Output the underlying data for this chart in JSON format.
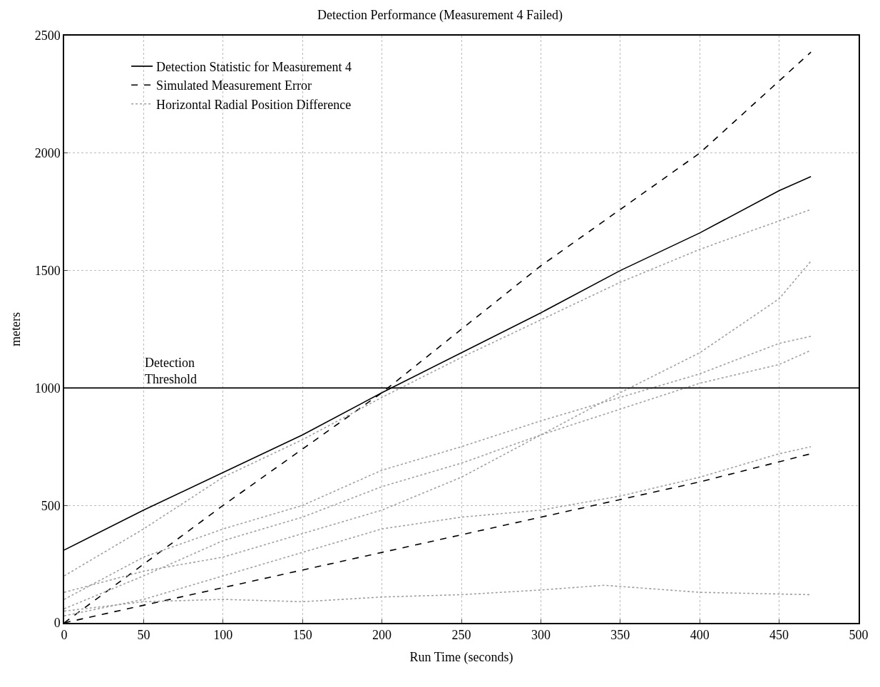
{
  "chart_data": {
    "type": "line",
    "title": "Detection Performance (Measurement 4 Failed)",
    "xlabel": "Run Time (seconds)",
    "ylabel": "meters",
    "xlim": [
      0,
      500
    ],
    "xticks": [
      0,
      50,
      100,
      150,
      200,
      250,
      300,
      350,
      400,
      450,
      500
    ],
    "ylim": [
      0,
      2500
    ],
    "yticks": [
      0,
      500,
      1000,
      1500,
      2000,
      2500
    ],
    "grid": true,
    "legend": "top left",
    "ref_lines": [
      {
        "axis": "y",
        "value": 1000,
        "label": "Detection Threshold",
        "color": "#000000",
        "line_style": "solid"
      }
    ],
    "series": [
      {
        "name": "Detection Statistic for Measurement 4",
        "color": "#000000",
        "line_style": "solid",
        "x": [
          0,
          50,
          100,
          150,
          200,
          250,
          300,
          350,
          400,
          450,
          470
        ],
        "values": [
          310,
          480,
          640,
          800,
          980,
          1150,
          1320,
          1500,
          1660,
          1840,
          1900
        ]
      },
      {
        "name": "Simulated Measurement Error",
        "color": "#000000",
        "line_style": "dashed",
        "x": [
          0,
          100,
          200,
          300,
          400,
          470
        ],
        "values": [
          0,
          500,
          980,
          1520,
          2000,
          2430
        ]
      },
      {
        "color": "#000000",
        "line_style": "dashed",
        "x": [
          0,
          100,
          200,
          300,
          400,
          470
        ],
        "values": [
          0,
          150,
          300,
          450,
          600,
          720
        ]
      },
      {
        "name": "Horizontal Radial Position Difference",
        "color": "#a0a0a0",
        "line_style": "dotted",
        "x": [
          0,
          50,
          100,
          150,
          200,
          250,
          300,
          350,
          400,
          470
        ],
        "values": [
          200,
          400,
          620,
          780,
          960,
          1130,
          1290,
          1450,
          1590,
          1760
        ]
      },
      {
        "color": "#a0a0a0",
        "line_style": "dotted",
        "x": [
          0,
          50,
          100,
          150,
          200,
          250,
          300,
          350,
          400,
          450,
          470
        ],
        "values": [
          130,
          220,
          280,
          380,
          480,
          620,
          800,
          980,
          1150,
          1380,
          1540
        ]
      },
      {
        "color": "#a0a0a0",
        "line_style": "dotted",
        "x": [
          0,
          50,
          100,
          150,
          200,
          250,
          300,
          350,
          400,
          450,
          470
        ],
        "values": [
          100,
          280,
          400,
          500,
          650,
          750,
          860,
          960,
          1060,
          1190,
          1220
        ]
      },
      {
        "color": "#a0a0a0",
        "line_style": "dotted",
        "x": [
          0,
          50,
          100,
          150,
          200,
          250,
          300,
          350,
          400,
          450,
          470
        ],
        "values": [
          60,
          200,
          350,
          450,
          580,
          680,
          800,
          910,
          1020,
          1100,
          1160
        ]
      },
      {
        "color": "#a0a0a0",
        "line_style": "dotted",
        "x": [
          0,
          50,
          100,
          150,
          200,
          250,
          300,
          350,
          400,
          450,
          470
        ],
        "values": [
          30,
          100,
          200,
          300,
          400,
          450,
          480,
          540,
          620,
          720,
          750
        ]
      },
      {
        "color": "#a0a0a0",
        "line_style": "dotted",
        "x": [
          0,
          50,
          100,
          150,
          200,
          250,
          300,
          340,
          400,
          470
        ],
        "values": [
          50,
          90,
          100,
          90,
          110,
          120,
          140,
          160,
          130,
          120
        ]
      }
    ]
  }
}
